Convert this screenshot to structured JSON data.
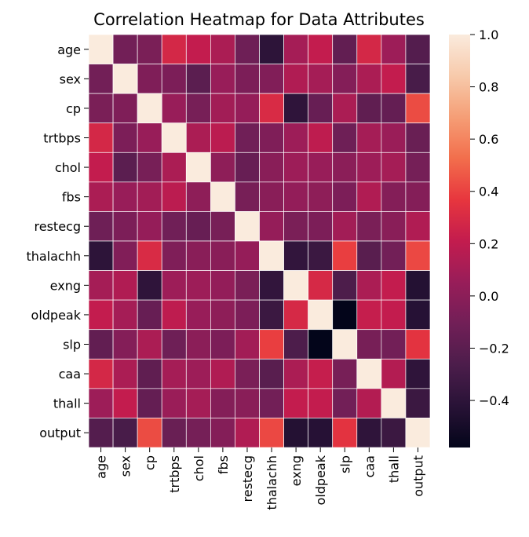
{
  "chart_data": {
    "type": "heatmap",
    "title": "Correlation Heatmap for Data Attributes",
    "labels": [
      "age",
      "sex",
      "cp",
      "trtbps",
      "chol",
      "fbs",
      "restecg",
      "thalachh",
      "exng",
      "oldpeak",
      "slp",
      "caa",
      "thall",
      "output"
    ],
    "matrix": [
      [
        1.0,
        -0.1,
        -0.07,
        0.28,
        0.21,
        0.12,
        -0.12,
        -0.4,
        0.1,
        0.21,
        -0.17,
        0.28,
        0.07,
        -0.23
      ],
      [
        -0.1,
        1.0,
        -0.05,
        -0.06,
        -0.2,
        0.05,
        -0.06,
        -0.04,
        0.14,
        0.1,
        -0.03,
        0.12,
        0.21,
        -0.28
      ],
      [
        -0.07,
        -0.05,
        1.0,
        0.05,
        -0.08,
        0.09,
        0.04,
        0.3,
        -0.39,
        -0.15,
        0.12,
        -0.18,
        -0.16,
        0.43
      ],
      [
        0.28,
        -0.06,
        0.05,
        1.0,
        0.12,
        0.18,
        -0.11,
        -0.05,
        0.07,
        0.19,
        -0.12,
        0.1,
        0.06,
        -0.14
      ],
      [
        0.21,
        -0.2,
        -0.08,
        0.12,
        1.0,
        0.01,
        -0.15,
        -0.01,
        0.07,
        0.05,
        -0.0,
        0.07,
        0.1,
        -0.09
      ],
      [
        0.12,
        0.05,
        0.09,
        0.18,
        0.01,
        1.0,
        -0.08,
        -0.01,
        0.03,
        0.01,
        -0.06,
        0.14,
        -0.03,
        -0.03
      ],
      [
        -0.12,
        -0.06,
        0.04,
        -0.11,
        -0.15,
        -0.08,
        1.0,
        0.04,
        -0.07,
        -0.06,
        0.09,
        -0.07,
        -0.01,
        0.14
      ],
      [
        -0.4,
        -0.04,
        0.3,
        -0.05,
        -0.01,
        -0.01,
        0.04,
        1.0,
        -0.38,
        -0.34,
        0.39,
        -0.21,
        -0.1,
        0.42
      ],
      [
        0.1,
        0.14,
        -0.39,
        0.07,
        0.07,
        0.03,
        -0.07,
        -0.38,
        1.0,
        0.29,
        -0.26,
        0.12,
        0.21,
        -0.44
      ],
      [
        0.21,
        0.1,
        -0.15,
        0.19,
        0.05,
        0.01,
        -0.06,
        -0.34,
        0.29,
        1.0,
        -0.58,
        0.22,
        0.21,
        -0.43
      ],
      [
        -0.17,
        -0.03,
        0.12,
        -0.12,
        -0.0,
        -0.06,
        0.09,
        0.39,
        -0.26,
        -0.58,
        1.0,
        -0.08,
        -0.1,
        0.35
      ],
      [
        0.28,
        0.12,
        -0.18,
        0.1,
        0.07,
        0.14,
        -0.07,
        -0.21,
        0.12,
        0.22,
        -0.08,
        1.0,
        0.15,
        -0.39
      ],
      [
        0.07,
        0.21,
        -0.16,
        0.06,
        0.1,
        -0.03,
        -0.01,
        -0.1,
        0.21,
        0.21,
        -0.1,
        0.15,
        1.0,
        -0.34
      ],
      [
        -0.23,
        -0.28,
        0.43,
        -0.14,
        -0.09,
        -0.03,
        0.14,
        0.42,
        -0.44,
        -0.43,
        0.35,
        -0.39,
        -0.34,
        1.0
      ]
    ],
    "vmin": -0.58,
    "vmax": 1.0,
    "colormap": "rocket",
    "colorbar_ticks": [
      1.0,
      0.8,
      0.6,
      0.4,
      0.2,
      0.0,
      -0.2,
      -0.4
    ],
    "colorbar_tick_labels": [
      "1.0",
      "0.8",
      "0.6",
      "0.4",
      "0.2",
      "0.0",
      "−0.2",
      "−0.4"
    ],
    "grid": true,
    "grid_color": "#ffffff"
  }
}
